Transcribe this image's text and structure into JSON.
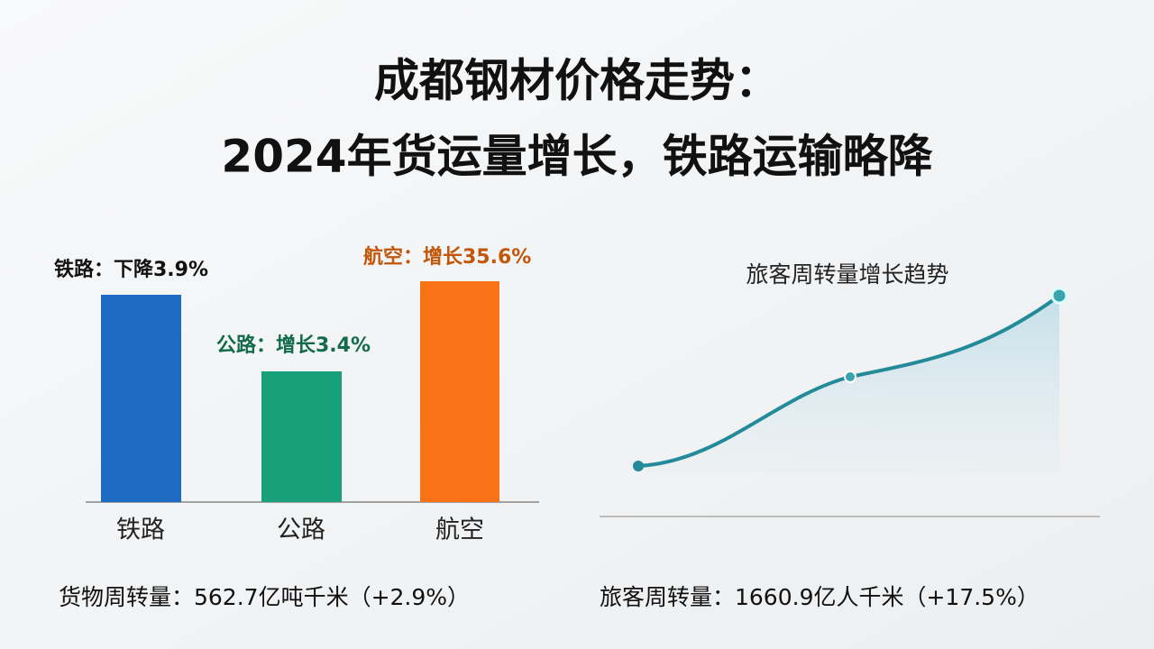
{
  "title": {
    "line1": "成都钢材价格走势：",
    "line2": "2024年货运量增长，铁路运输略降"
  },
  "freight": {
    "bars": [
      {
        "label": "铁路：下降3.9%",
        "category": "铁路"
      },
      {
        "label": "公路：增长3.4%",
        "category": "公路"
      },
      {
        "label": "航空：增长35.6%",
        "category": "航空"
      }
    ],
    "summary": "货物周转量：562.7亿吨千米（+2.9%）"
  },
  "passenger": {
    "title": "旅客周转量增长趋势",
    "summary": "旅客周转量：1660.9亿人千米（+17.5%）"
  }
}
